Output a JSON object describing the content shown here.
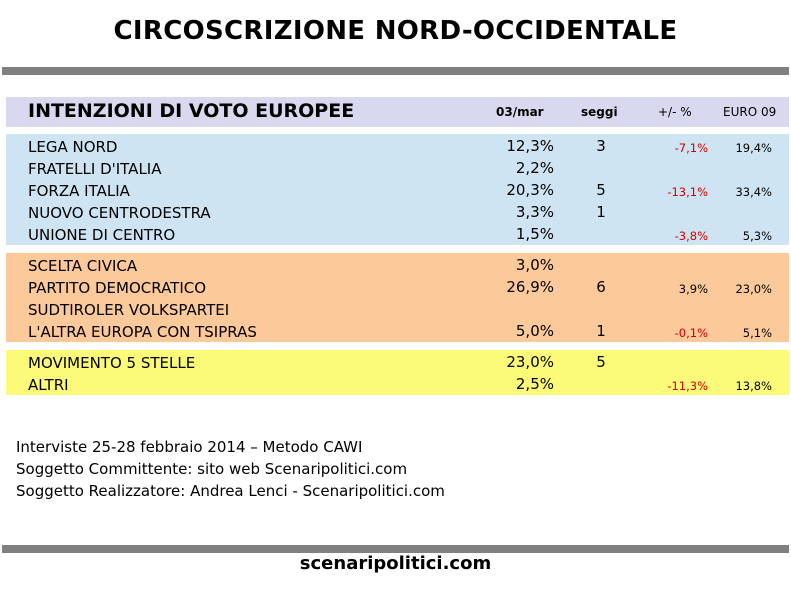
{
  "title": "CIRCOSCRIZIONE NORD-OCCIDENTALE",
  "table": {
    "title": "INTENZIONI DI VOTO EUROPEE",
    "col_pct": "03/mar",
    "col_seats": "seggi",
    "col_diff": "+/- %",
    "col_euro": "EURO 09"
  },
  "groups": [
    {
      "rows": [
        {
          "party": "LEGA NORD",
          "pct": "12,3%",
          "seats": "3",
          "diff": "-7,1%",
          "euro": "19,4%"
        },
        {
          "party": "FRATELLI D'ITALIA",
          "pct": "2,2%",
          "seats": "",
          "diff": "",
          "euro": ""
        },
        {
          "party": "FORZA ITALIA",
          "pct": "20,3%",
          "seats": "5",
          "diff": "-13,1%",
          "euro": "33,4%"
        },
        {
          "party": "NUOVO CENTRODESTRA",
          "pct": "3,3%",
          "seats": "1",
          "diff": "",
          "euro": ""
        },
        {
          "party": "UNIONE DI CENTRO",
          "pct": "1,5%",
          "seats": "",
          "diff": "-3,8%",
          "euro": "5,3%"
        }
      ]
    },
    {
      "rows": [
        {
          "party": "SCELTA CIVICA",
          "pct": "3,0%",
          "seats": "",
          "diff": "",
          "euro": ""
        },
        {
          "party": "PARTITO DEMOCRATICO",
          "pct": "26,9%",
          "seats": "6",
          "diff": "3,9%",
          "euro": "23,0%"
        },
        {
          "party": "SUDTIROLER VOLKSPARTEI",
          "pct": "",
          "seats": "",
          "diff": "",
          "euro": ""
        },
        {
          "party": "L'ALTRA EUROPA CON TSIPRAS",
          "pct": "5,0%",
          "seats": "1",
          "diff": "-0,1%",
          "euro": "5,1%"
        }
      ]
    },
    {
      "rows": [
        {
          "party": "MOVIMENTO 5 STELLE",
          "pct": "23,0%",
          "seats": "5",
          "diff": "",
          "euro": ""
        },
        {
          "party": "ALTRI",
          "pct": "2,5%",
          "seats": "",
          "diff": "-11,3%",
          "euro": "13,8%"
        }
      ]
    }
  ],
  "notes": [
    "Interviste 25-28 febbraio 2014 – Metodo CAWI",
    "Soggetto Committente: sito web Scenaripolitici.com",
    "Soggetto Realizzatore: Andrea Lenci - Scenaripolitici.com"
  ],
  "footer": "scenaripolitici.com"
}
